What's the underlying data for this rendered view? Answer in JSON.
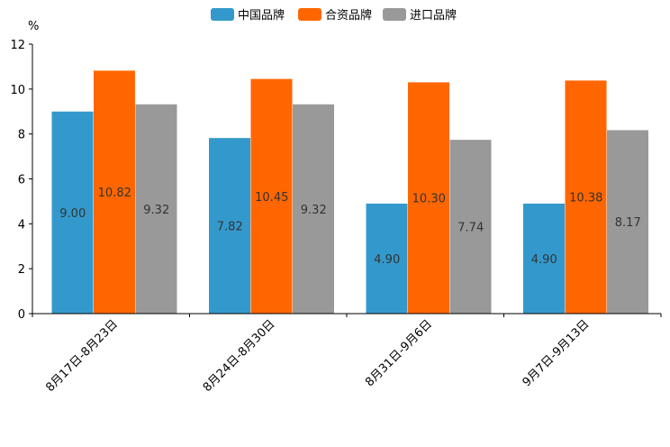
{
  "chart_data": {
    "type": "bar",
    "ylabel": "%",
    "ylim": [
      0,
      12
    ],
    "yticks": [
      0,
      2,
      4,
      6,
      8,
      10,
      12
    ],
    "categories": [
      "8月17日-8月23日",
      "8月24日-8月30日",
      "8月31日-9月6日",
      "9月7日-9月13日"
    ],
    "series": [
      {
        "name": "中国品牌",
        "color": "#3399cc",
        "values": [
          9.0,
          7.82,
          4.9,
          4.9
        ],
        "labels": [
          "9.00",
          "7.82",
          "4.90",
          "4.90"
        ]
      },
      {
        "name": "合资品牌",
        "color": "#ff6600",
        "values": [
          10.82,
          10.45,
          10.3,
          10.38
        ],
        "labels": [
          "10.82",
          "10.45",
          "10.30",
          "10.38"
        ]
      },
      {
        "name": "进口品牌",
        "color": "#999999",
        "values": [
          9.32,
          9.32,
          7.74,
          8.17
        ],
        "labels": [
          "9.32",
          "9.32",
          "7.74",
          "8.17"
        ]
      }
    ],
    "legend": "top-center",
    "grid": false
  }
}
